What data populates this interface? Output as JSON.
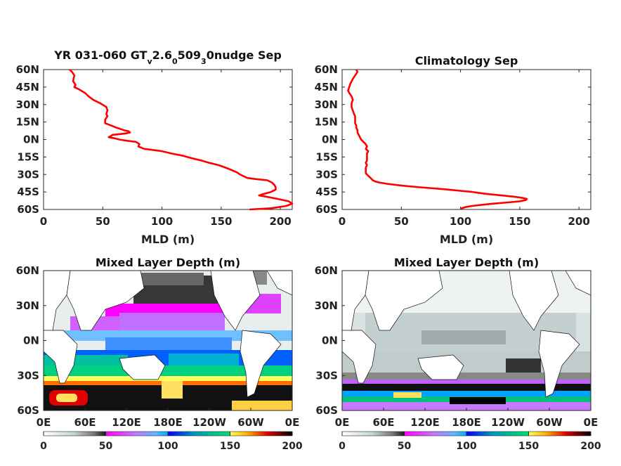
{
  "colors": {
    "profile": "#ff0000",
    "axis": "#262626",
    "land": "#ffffff"
  },
  "chart_data": [
    {
      "id": "model-profile",
      "type": "line",
      "title_parts": [
        "YR 031-060 GT",
        "v",
        "2.6",
        "0",
        "509",
        "3",
        "0nudge Sep"
      ],
      "xlabel": "MLD (m)",
      "xlim": [
        0,
        210
      ],
      "ylim": [
        -60,
        60
      ],
      "xticks": [
        0,
        50,
        100,
        150,
        200
      ],
      "yticks": [
        -60,
        -45,
        -30,
        -15,
        0,
        15,
        30,
        45,
        60
      ],
      "ytick_labels": [
        "60S",
        "45S",
        "30S",
        "15S",
        "0N",
        "15N",
        "30N",
        "45N",
        "60N"
      ],
      "series": [
        {
          "lat": [
            60,
            58,
            55,
            50,
            47,
            45,
            43,
            40,
            37,
            34,
            31,
            28,
            25,
            22,
            20,
            17,
            14,
            12,
            10,
            8,
            7,
            6,
            5,
            4,
            3,
            2,
            1,
            0,
            -1,
            -2,
            -4,
            -6,
            -8,
            -10,
            -12,
            -14,
            -16,
            -18,
            -20,
            -22,
            -25,
            -28,
            -30,
            -32,
            -33,
            -34,
            -35,
            -37,
            -39,
            -41,
            -43,
            -45,
            -47,
            -48,
            -49,
            -51,
            -53,
            -55,
            -57,
            -59,
            -60
          ],
          "mld": [
            22,
            24,
            26,
            25,
            27,
            26,
            30,
            35,
            38,
            42,
            48,
            53,
            54,
            53,
            54,
            52,
            52,
            57,
            62,
            68,
            72,
            73,
            68,
            58,
            57,
            55,
            60,
            64,
            70,
            78,
            81,
            80,
            85,
            100,
            108,
            118,
            125,
            133,
            140,
            148,
            156,
            163,
            166,
            170,
            172,
            180,
            189,
            193,
            195,
            196,
            196,
            192,
            185,
            182,
            188,
            198,
            207,
            210,
            205,
            192,
            174
          ]
        }
      ]
    },
    {
      "id": "climatology-profile",
      "type": "line",
      "title": "Climatology Sep",
      "xlabel": "MLD (m)",
      "xlim": [
        0,
        210
      ],
      "ylim": [
        -60,
        60
      ],
      "xticks": [
        0,
        50,
        100,
        150,
        200
      ],
      "yticks": [
        -60,
        -45,
        -30,
        -15,
        0,
        15,
        30,
        45,
        60
      ],
      "ytick_labels": [
        "60S",
        "45S",
        "30S",
        "15S",
        "0N",
        "15N",
        "30N",
        "45N",
        "60N"
      ],
      "series": [
        {
          "lat": [
            60,
            58,
            55,
            52,
            50,
            48,
            45,
            42,
            40,
            37,
            34,
            31,
            28,
            25,
            22,
            20,
            17,
            14,
            12,
            10,
            8,
            6,
            4,
            2,
            0,
            -2,
            -4,
            -6,
            -8,
            -10,
            -12,
            -15,
            -18,
            -20,
            -22,
            -24,
            -26,
            -28,
            -29,
            -30,
            -31,
            -32,
            -33,
            -34,
            -35,
            -36,
            -37,
            -38,
            -39,
            -40,
            -41,
            -42,
            -43,
            -44,
            -45,
            -46,
            -47,
            -48,
            -49,
            -50,
            -51,
            -52,
            -53,
            -54,
            -55,
            -56,
            -57,
            -58,
            -59,
            -60
          ],
          "mld": [
            12,
            13,
            11,
            9,
            8,
            7,
            6,
            5,
            6,
            8,
            9,
            8,
            8,
            9,
            10,
            11,
            11,
            11,
            12,
            12,
            13,
            13,
            14,
            15,
            16,
            18,
            20,
            21,
            20,
            22,
            21,
            21,
            21,
            20,
            21,
            20,
            20,
            20,
            20,
            21,
            22,
            23,
            24,
            25,
            26,
            28,
            32,
            38,
            46,
            55,
            66,
            78,
            90,
            100,
            110,
            117,
            125,
            135,
            145,
            152,
            156,
            155,
            150,
            140,
            128,
            118,
            110,
            104,
            101,
            100
          ]
        }
      ]
    },
    {
      "id": "model-map",
      "type": "heatmap",
      "title": "Mixed Layer Depth (m)",
      "xticks": [
        "0E",
        "60E",
        "120E",
        "180E",
        "120W",
        "60W",
        "0E"
      ],
      "yticks": [
        "60N",
        "30N",
        "0N",
        "30S",
        "60S"
      ],
      "lat_range": [
        -60,
        60
      ],
      "lon_range": [
        0,
        360
      ],
      "colorbar": {
        "ticks": [
          0,
          50,
          100,
          150,
          200
        ],
        "range": [
          0,
          200
        ]
      }
    },
    {
      "id": "climatology-map",
      "type": "heatmap",
      "title": "Mixed Layer Depth (m)",
      "xticks": [
        "0E",
        "60E",
        "120E",
        "180E",
        "120W",
        "60W",
        "0E"
      ],
      "yticks": [
        "60N",
        "30N",
        "0N",
        "30S",
        "60S"
      ],
      "lat_range": [
        -60,
        60
      ],
      "lon_range": [
        0,
        360
      ],
      "colorbar": {
        "ticks": [
          0,
          50,
          100,
          150,
          200
        ],
        "range": [
          0,
          200
        ]
      }
    }
  ]
}
